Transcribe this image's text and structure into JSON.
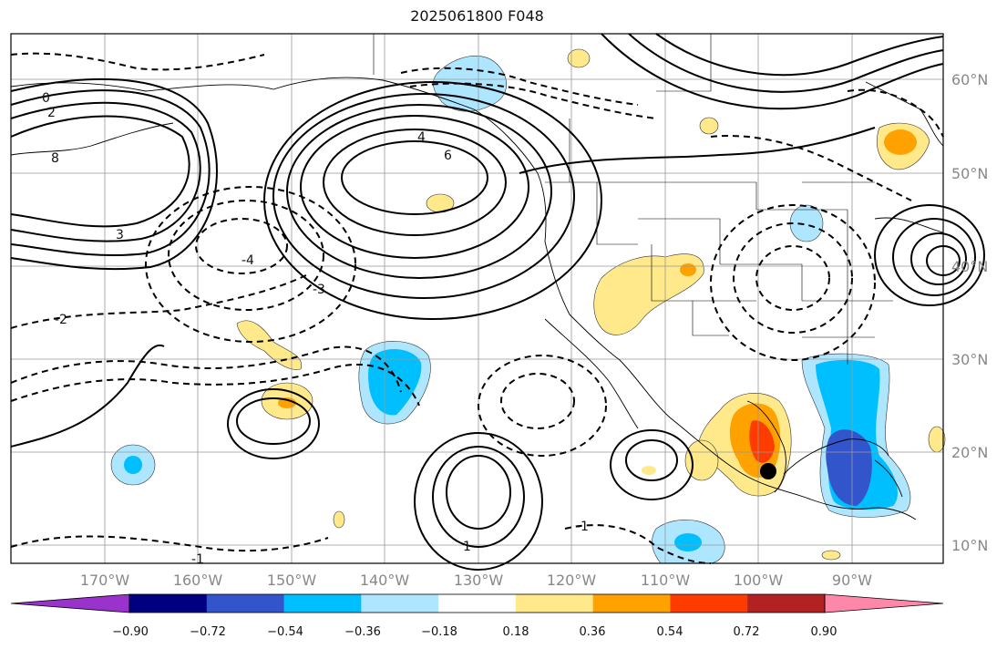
{
  "title": "2025061800 F048",
  "map": {
    "lat_labels": [
      "60°N",
      "50°N",
      "40°N",
      "30°N",
      "20°N",
      "10°N"
    ],
    "lon_labels": [
      "170°W",
      "160°W",
      "150°W",
      "140°W",
      "130°W",
      "120°W",
      "110°W",
      "100°W",
      "90°W"
    ],
    "contour_labels": [
      "6",
      "4",
      "2",
      "0",
      "-2",
      "-4",
      "-3",
      "-1",
      "1",
      "3",
      "8",
      "-1"
    ]
  },
  "colorbar": {
    "ticks": [
      "−0.90",
      "−0.72",
      "−0.54",
      "−0.36",
      "−0.18",
      "0.18",
      "0.36",
      "0.54",
      "0.72",
      "0.90"
    ],
    "colors": [
      "#9933cc",
      "#000080",
      "#3355cc",
      "#00bfff",
      "#aee6ff",
      "#ffffff",
      "#ffe98a",
      "#ffa200",
      "#ff3c00",
      "#b22222",
      "#ff88aa"
    ]
  }
}
